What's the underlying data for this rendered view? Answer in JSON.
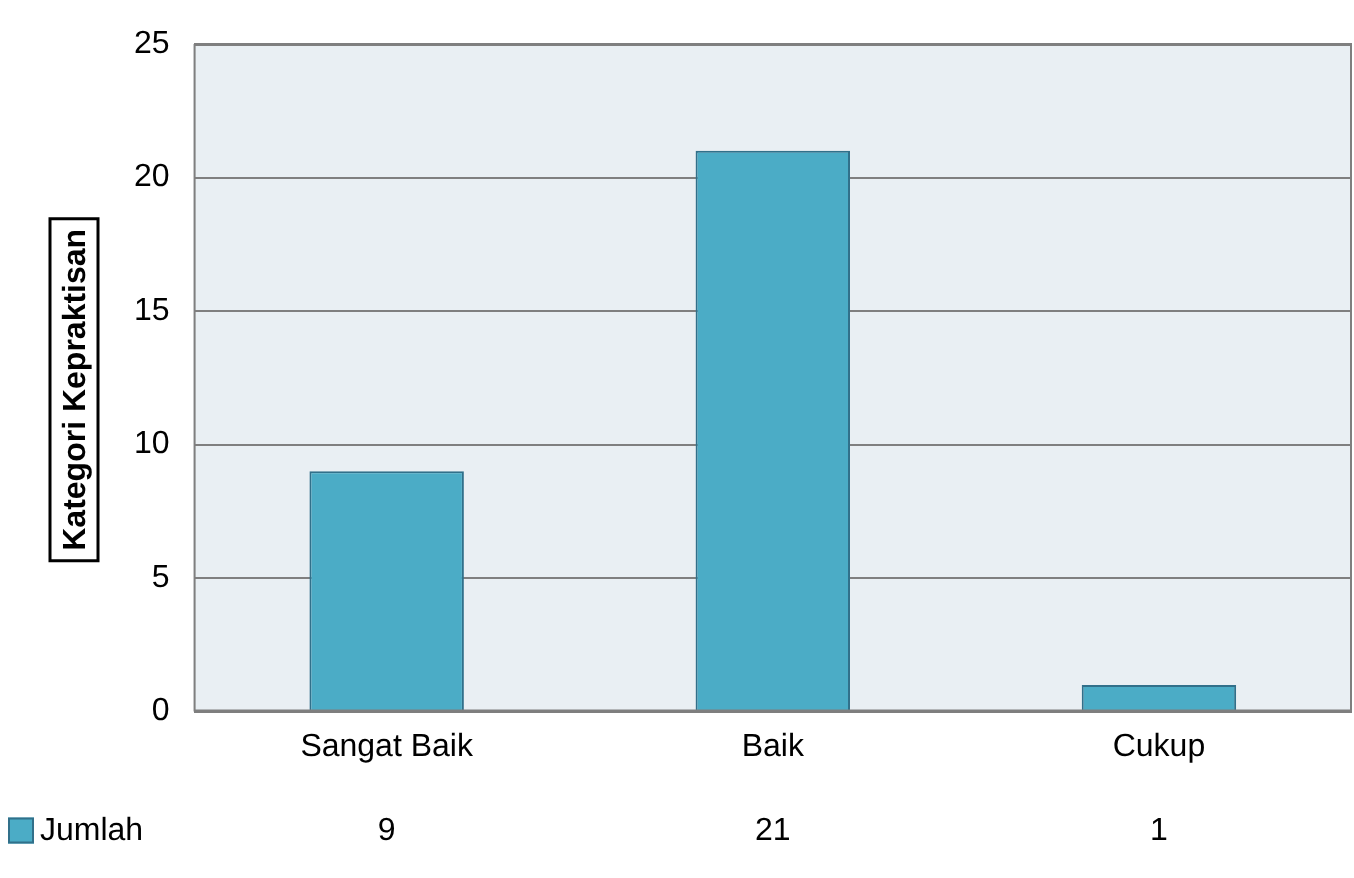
{
  "chart_data": {
    "type": "bar",
    "ylabel": "Kategori Kepraktisan",
    "categories": [
      "Sangat Baik",
      "Baik",
      "Cukup"
    ],
    "series": [
      {
        "name": "Jumlah",
        "color": "#4bacc6",
        "values": [
          9,
          21,
          1
        ]
      }
    ],
    "ylim": [
      0,
      25
    ],
    "yticks": [
      0,
      5,
      10,
      15,
      20,
      25
    ],
    "grid": "y",
    "legend": "bottom left",
    "data_labels": true
  }
}
